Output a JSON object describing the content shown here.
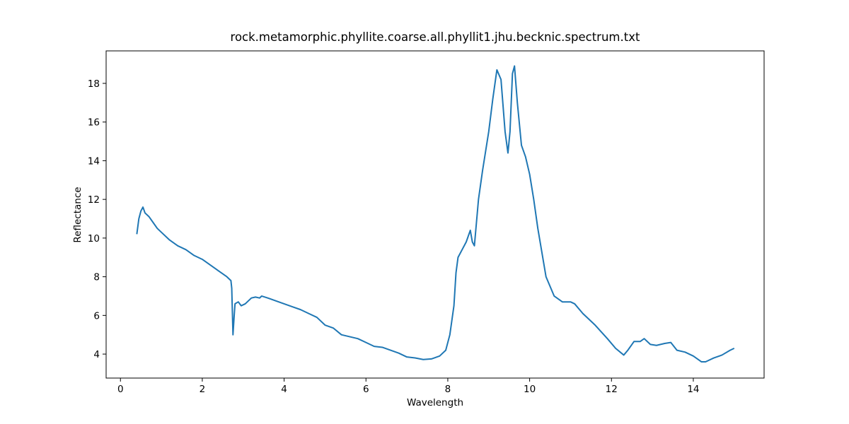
{
  "chart_data": {
    "type": "line",
    "title": "rock.metamorphic.phyllite.coarse.all.phyllit1.jhu.becknic.spectrum.txt",
    "xlabel": "Wavelength",
    "ylabel": "Reflectance",
    "xlim": [
      -0.35,
      15.73
    ],
    "ylim": [
      2.76,
      19.68
    ],
    "xticks": [
      0,
      2,
      4,
      6,
      8,
      10,
      12,
      14
    ],
    "yticks": [
      4,
      6,
      8,
      10,
      12,
      14,
      16,
      18
    ],
    "series": [
      {
        "color": "#1f77b4",
        "x": [
          0.4,
          0.45,
          0.5,
          0.55,
          0.6,
          0.7,
          0.8,
          0.9,
          1.0,
          1.2,
          1.4,
          1.6,
          1.8,
          2.0,
          2.2,
          2.4,
          2.6,
          2.7,
          2.72,
          2.75,
          2.78,
          2.8,
          2.88,
          2.95,
          3.05,
          3.2,
          3.3,
          3.4,
          3.45,
          3.6,
          3.8,
          4.0,
          4.2,
          4.4,
          4.6,
          4.8,
          5.0,
          5.2,
          5.4,
          5.6,
          5.8,
          6.0,
          6.2,
          6.4,
          6.6,
          6.8,
          7.0,
          7.2,
          7.4,
          7.6,
          7.8,
          7.95,
          8.05,
          8.15,
          8.2,
          8.25,
          8.35,
          8.45,
          8.55,
          8.6,
          8.65,
          8.75,
          8.85,
          9.0,
          9.1,
          9.2,
          9.3,
          9.4,
          9.47,
          9.52,
          9.58,
          9.63,
          9.7,
          9.8,
          9.9,
          10.0,
          10.1,
          10.2,
          10.4,
          10.6,
          10.8,
          11.0,
          11.1,
          11.3,
          11.6,
          11.9,
          12.1,
          12.3,
          12.4,
          12.55,
          12.7,
          12.8,
          12.95,
          13.1,
          13.3,
          13.45,
          13.6,
          13.8,
          14.0,
          14.2,
          14.3,
          14.5,
          14.7,
          14.9,
          15.0
        ],
        "values": [
          10.2,
          11.0,
          11.4,
          11.6,
          11.3,
          11.1,
          10.8,
          10.5,
          10.3,
          9.9,
          9.6,
          9.4,
          9.1,
          8.9,
          8.6,
          8.3,
          8.0,
          7.8,
          7.4,
          5.0,
          6.0,
          6.6,
          6.7,
          6.5,
          6.6,
          6.9,
          6.95,
          6.9,
          7.0,
          6.9,
          6.75,
          6.6,
          6.45,
          6.3,
          6.1,
          5.9,
          5.5,
          5.35,
          5.0,
          4.9,
          4.8,
          4.6,
          4.4,
          4.35,
          4.2,
          4.05,
          3.85,
          3.8,
          3.72,
          3.75,
          3.9,
          4.2,
          5.0,
          6.5,
          8.2,
          9.0,
          9.4,
          9.8,
          10.4,
          9.8,
          9.6,
          12.0,
          13.5,
          15.5,
          17.2,
          18.7,
          18.2,
          15.5,
          14.4,
          15.5,
          18.5,
          18.9,
          17.0,
          14.8,
          14.2,
          13.3,
          12.0,
          10.5,
          8.0,
          7.0,
          6.7,
          6.7,
          6.6,
          6.1,
          5.5,
          4.8,
          4.3,
          3.95,
          4.2,
          4.65,
          4.65,
          4.8,
          4.5,
          4.45,
          4.55,
          4.6,
          4.2,
          4.1,
          3.9,
          3.6,
          3.6,
          3.8,
          3.95,
          4.2,
          4.3
        ]
      }
    ]
  }
}
